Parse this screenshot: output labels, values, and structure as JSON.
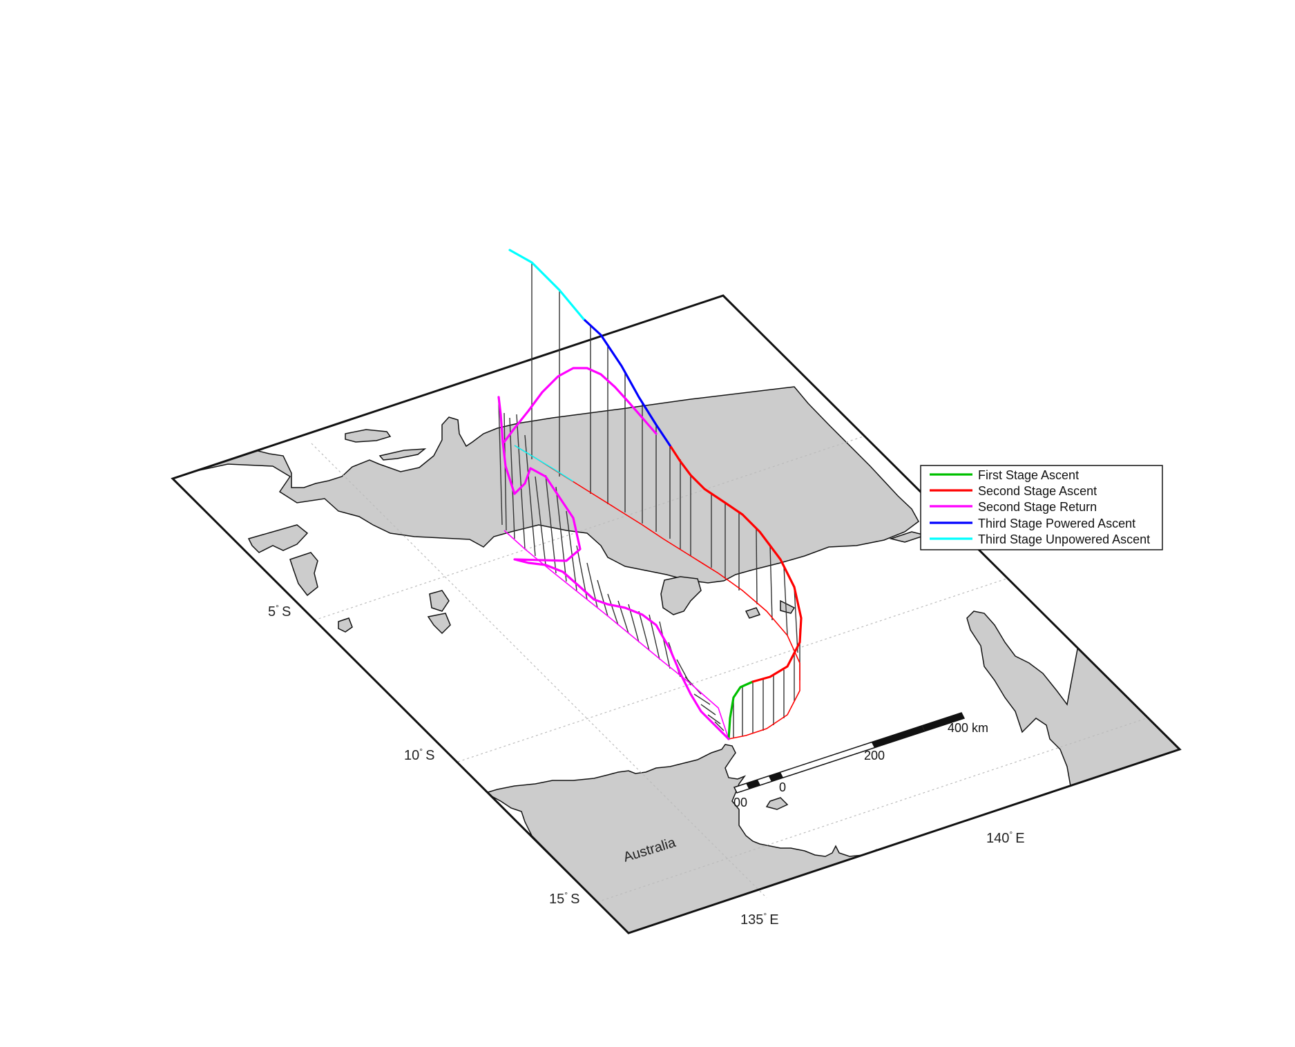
{
  "map": {
    "lat_labels": [
      {
        "deg": "5",
        "hemi": "S"
      },
      {
        "deg": "10",
        "hemi": "S"
      },
      {
        "deg": "15",
        "hemi": "S"
      }
    ],
    "lon_labels": [
      {
        "deg": "135",
        "hemi": "E"
      },
      {
        "deg": "140",
        "hemi": "E"
      }
    ],
    "degree_symbol": "°",
    "region_label": "Australia",
    "land_color": "#cccccc",
    "frame_color": "#111111",
    "grid_color": "#bbbbbb"
  },
  "scalebar": {
    "labels": [
      "00",
      "0",
      "200",
      "400 km"
    ]
  },
  "legend": {
    "entries": [
      {
        "label": "First Stage Ascent",
        "color": "#00c000"
      },
      {
        "label": "Second Stage Ascent",
        "color": "#ff0000"
      },
      {
        "label": "Second Stage Return",
        "color": "#ff00ff"
      },
      {
        "label": "Third Stage Powered Ascent",
        "color": "#0000ff"
      },
      {
        "label": "Third Stage Unpowered Ascent",
        "color": "#00ffff"
      }
    ]
  }
}
